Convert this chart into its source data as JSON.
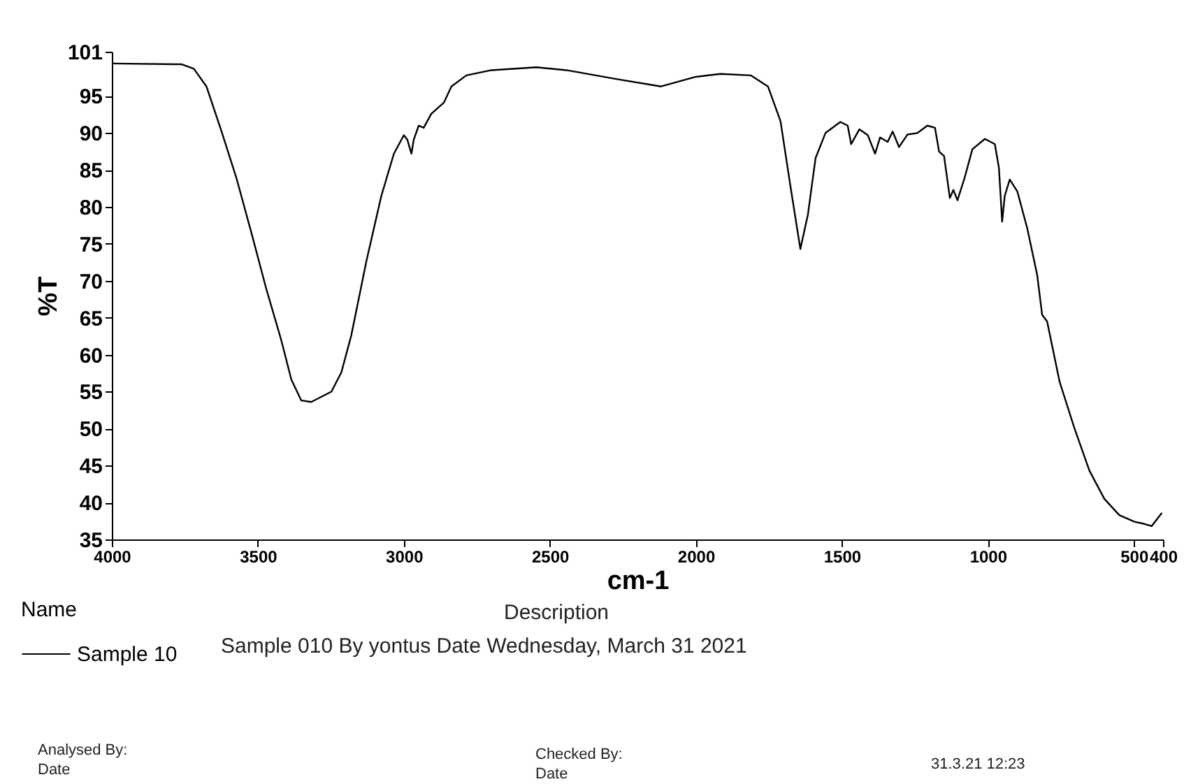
{
  "chart_data": {
    "type": "line",
    "xlabel": "cm-1",
    "ylabel": "%T",
    "legend_title": "Name",
    "legend": "bottom",
    "xlim": [
      4000,
      400
    ],
    "ylim": [
      35,
      101
    ],
    "xticks": [
      4000,
      3500,
      3000,
      2500,
      2000,
      1500,
      1000,
      500,
      400
    ],
    "yticks": [
      35,
      40,
      45,
      50,
      55,
      60,
      65,
      70,
      75,
      80,
      85,
      90,
      95,
      101
    ],
    "grid": false,
    "marker": "none",
    "line_style": "solid",
    "annotations": [
      "Description",
      "Sample 010 By yontus Date Wednesday, March 31 2021",
      "Analysed By:",
      "Date",
      "Checked By:",
      "Date",
      "31.3.21 12:23"
    ],
    "series": [
      {
        "name": "Sample 10",
        "color": "#000000",
        "x": [
          4000,
          3762,
          3719,
          3676,
          3625,
          3574,
          3522,
          3471,
          3420,
          3385,
          3351,
          3317,
          3248,
          3214,
          3180,
          3128,
          3077,
          3034,
          3000,
          2988,
          2974,
          2966,
          2949,
          2932,
          2906,
          2863,
          2837,
          2786,
          2700,
          2546,
          2443,
          2272,
          2119,
          2000,
          1915,
          1812,
          1753,
          1710,
          1676,
          1642,
          1616,
          1590,
          1556,
          1505,
          1480,
          1468,
          1440,
          1411,
          1386,
          1369,
          1343,
          1326,
          1304,
          1275,
          1241,
          1207,
          1181,
          1167,
          1150,
          1130,
          1118,
          1104,
          1079,
          1053,
          1010,
          976,
          962,
          951,
          942,
          925,
          899,
          865,
          831,
          814,
          797,
          754,
          703,
          652,
          601,
          550,
          498,
          464,
          439,
          404
        ],
        "values": [
          99.4,
          99.3,
          98.7,
          96.3,
          90.3,
          84.0,
          76.5,
          68.9,
          62.0,
          56.6,
          53.8,
          53.6,
          55.0,
          57.6,
          62.6,
          72.7,
          81.5,
          87.2,
          89.7,
          89.1,
          87.2,
          89.1,
          91.0,
          90.7,
          92.6,
          94.1,
          96.3,
          97.8,
          98.5,
          98.9,
          98.5,
          97.3,
          96.3,
          97.6,
          98.0,
          97.8,
          96.3,
          91.6,
          82.8,
          74.3,
          79.0,
          86.6,
          90.0,
          91.5,
          91.0,
          88.5,
          90.5,
          89.7,
          87.2,
          89.4,
          88.8,
          90.2,
          88.1,
          89.8,
          90.0,
          91.0,
          90.7,
          87.5,
          86.9,
          81.2,
          82.3,
          80.9,
          84.0,
          87.8,
          89.2,
          88.5,
          85.3,
          78.0,
          81.5,
          83.7,
          82.1,
          77.1,
          70.8,
          65.4,
          64.5,
          56.3,
          50.0,
          44.3,
          40.5,
          38.3,
          37.4,
          37.1,
          36.8,
          38.6
        ]
      }
    ]
  }
}
